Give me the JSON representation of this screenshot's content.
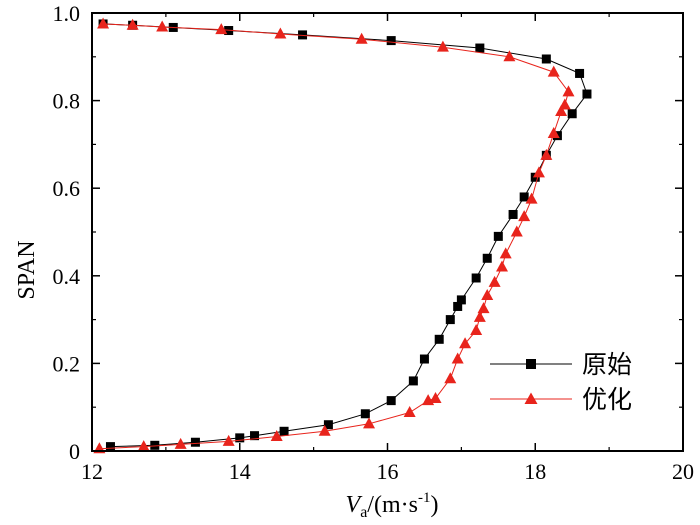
{
  "chart_data": {
    "type": "line",
    "xlabel": {
      "main": "V",
      "sub": "a",
      "rest": "/(m·s",
      "sup": "-1",
      "close": ")"
    },
    "ylabel": "SPAN",
    "xlim": [
      12,
      20
    ],
    "ylim": [
      0,
      1.0
    ],
    "xticks": [
      12,
      14,
      16,
      18,
      20
    ],
    "xtick_labels": [
      "12",
      "14",
      "16",
      "18",
      "20"
    ],
    "yticks": [
      0,
      0.2,
      0.4,
      0.6,
      0.8,
      1.0
    ],
    "ytick_labels": [
      "0",
      "0.2",
      "0.4",
      "0.6",
      "0.8",
      "1.0"
    ],
    "legend_position": "lower-right",
    "series": [
      {
        "name": "原始",
        "marker": "square",
        "color": "#000000",
        "points": [
          [
            12.25,
            0.01
          ],
          [
            12.85,
            0.013
          ],
          [
            13.4,
            0.02
          ],
          [
            14.0,
            0.03
          ],
          [
            14.2,
            0.035
          ],
          [
            14.6,
            0.045
          ],
          [
            15.2,
            0.06
          ],
          [
            15.7,
            0.085
          ],
          [
            16.05,
            0.115
          ],
          [
            16.35,
            0.16
          ],
          [
            16.5,
            0.21
          ],
          [
            16.7,
            0.255
          ],
          [
            16.85,
            0.3
          ],
          [
            16.95,
            0.33
          ],
          [
            17.0,
            0.345
          ],
          [
            17.2,
            0.395
          ],
          [
            17.35,
            0.44
          ],
          [
            17.5,
            0.49
          ],
          [
            17.7,
            0.54
          ],
          [
            17.85,
            0.58
          ],
          [
            18.0,
            0.625
          ],
          [
            18.15,
            0.675
          ],
          [
            18.3,
            0.72
          ],
          [
            18.5,
            0.77
          ],
          [
            18.7,
            0.815
          ],
          [
            18.6,
            0.862
          ],
          [
            18.15,
            0.895
          ],
          [
            17.25,
            0.92
          ],
          [
            16.05,
            0.937
          ],
          [
            14.85,
            0.95
          ],
          [
            13.85,
            0.96
          ],
          [
            13.1,
            0.967
          ],
          [
            12.55,
            0.972
          ],
          [
            12.15,
            0.975
          ]
        ]
      },
      {
        "name": "优化",
        "marker": "triangle",
        "color": "#e8241c",
        "points": [
          [
            12.1,
            0.005
          ],
          [
            12.7,
            0.01
          ],
          [
            13.2,
            0.015
          ],
          [
            13.85,
            0.022
          ],
          [
            14.5,
            0.033
          ],
          [
            15.15,
            0.045
          ],
          [
            15.75,
            0.062
          ],
          [
            16.3,
            0.088
          ],
          [
            16.55,
            0.115
          ],
          [
            16.65,
            0.12
          ],
          [
            16.85,
            0.165
          ],
          [
            16.95,
            0.21
          ],
          [
            17.05,
            0.245
          ],
          [
            17.2,
            0.275
          ],
          [
            17.25,
            0.305
          ],
          [
            17.3,
            0.325
          ],
          [
            17.35,
            0.355
          ],
          [
            17.45,
            0.385
          ],
          [
            17.55,
            0.42
          ],
          [
            17.6,
            0.45
          ],
          [
            17.75,
            0.5
          ],
          [
            17.85,
            0.535
          ],
          [
            17.95,
            0.575
          ],
          [
            18.05,
            0.635
          ],
          [
            18.15,
            0.675
          ],
          [
            18.25,
            0.725
          ],
          [
            18.35,
            0.775
          ],
          [
            18.4,
            0.79
          ],
          [
            18.45,
            0.82
          ],
          [
            18.25,
            0.865
          ],
          [
            17.65,
            0.9
          ],
          [
            16.75,
            0.922
          ],
          [
            15.65,
            0.94
          ],
          [
            14.55,
            0.952
          ],
          [
            13.75,
            0.962
          ],
          [
            12.95,
            0.968
          ],
          [
            12.55,
            0.972
          ],
          [
            12.15,
            0.975
          ]
        ]
      }
    ]
  }
}
